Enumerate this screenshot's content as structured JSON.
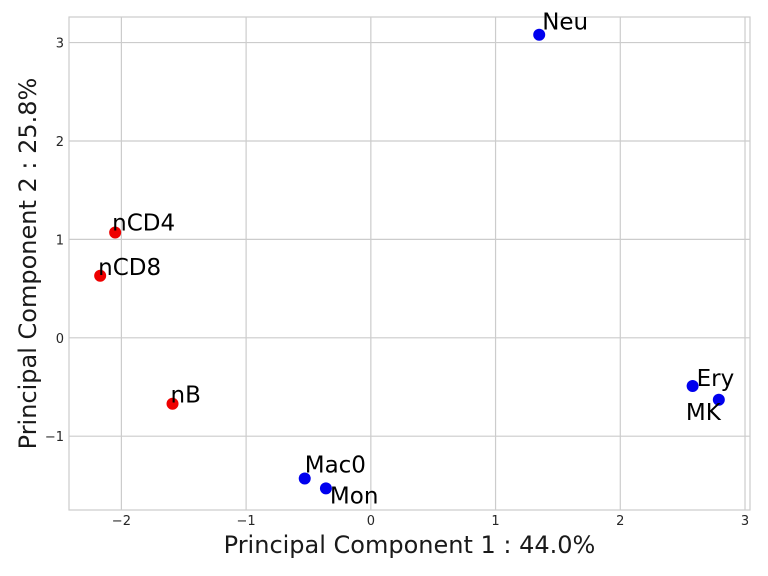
{
  "chart_data": {
    "type": "scatter",
    "xlabel": "Principal Component 1 : 44.0%",
    "ylabel": "Principal Component 2 : 25.8%",
    "xlim": [
      -2.42,
      3.04
    ],
    "ylim": [
      -1.75,
      3.26
    ],
    "xticks": [
      -2,
      -1,
      0,
      1,
      2,
      3
    ],
    "yticks": [
      -1,
      0,
      1,
      2,
      3
    ],
    "xtick_labels": [
      "−2",
      "−1",
      "0",
      "1",
      "2",
      "3"
    ],
    "ytick_labels": [
      "−1",
      "0",
      "1",
      "2",
      "3"
    ],
    "grid": true,
    "colors": {
      "lymphoid": "#ee0000",
      "myeloid": "#0000ee"
    },
    "points": [
      {
        "label": "Neu",
        "x": 1.35,
        "y": 3.08,
        "group": "myeloid"
      },
      {
        "label": "nCD4",
        "x": -2.05,
        "y": 1.07,
        "group": "lymphoid"
      },
      {
        "label": "nCD8",
        "x": -2.17,
        "y": 0.63,
        "group": "lymphoid"
      },
      {
        "label": "nB",
        "x": -1.59,
        "y": -0.67,
        "group": "lymphoid"
      },
      {
        "label": "Ery",
        "x": 2.58,
        "y": -0.49,
        "group": "myeloid"
      },
      {
        "label": "MK",
        "x": 2.79,
        "y": -0.63,
        "group": "myeloid"
      },
      {
        "label": "Mac0",
        "x": -0.53,
        "y": -1.43,
        "group": "myeloid"
      },
      {
        "label": "Mon",
        "x": -0.36,
        "y": -1.53,
        "group": "myeloid"
      }
    ]
  }
}
